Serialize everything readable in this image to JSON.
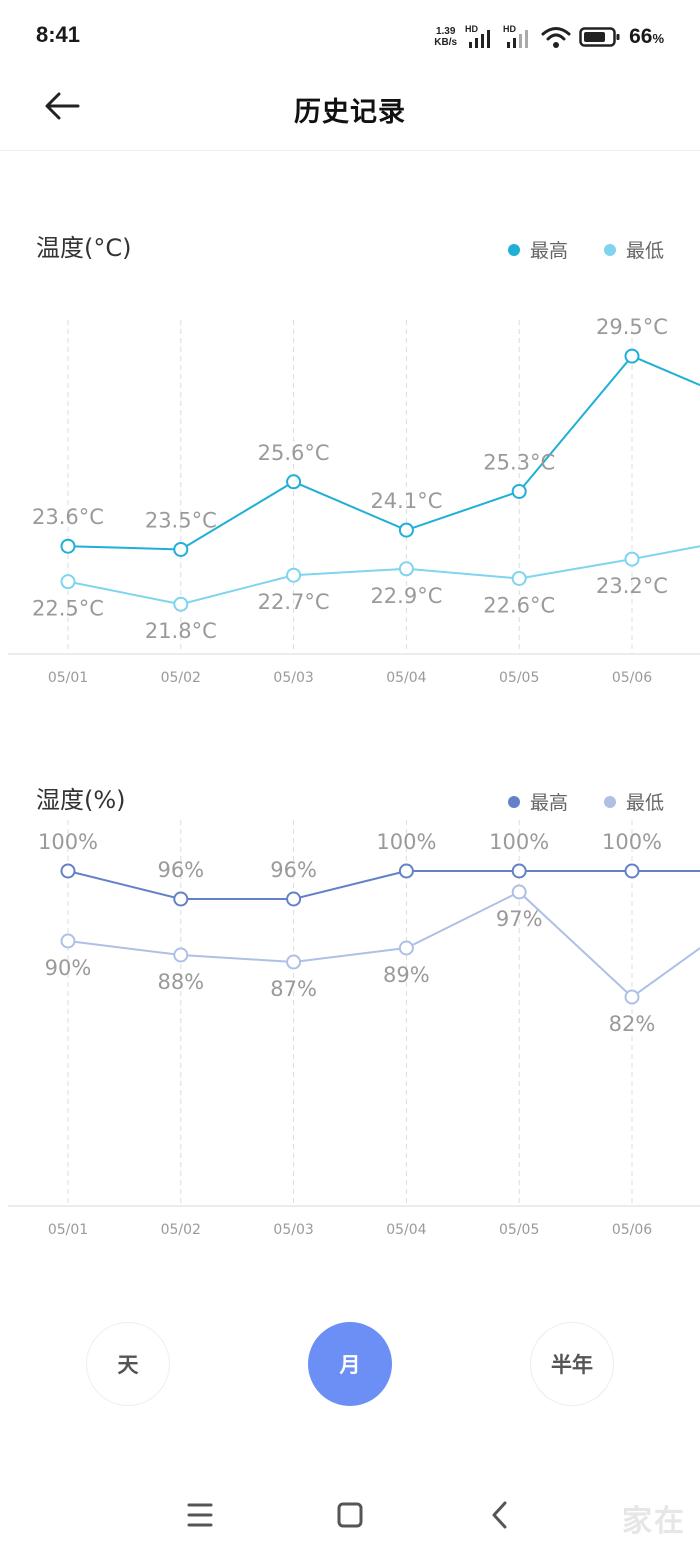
{
  "status_bar": {
    "time": "8:41",
    "net_speed_value": "1.39",
    "net_speed_unit": "KB/s",
    "signal_badge_1": "HD",
    "signal_badge_2": "HD",
    "battery_percent": "66",
    "battery_unit": "%"
  },
  "header": {
    "title": "历史记录"
  },
  "temperature_chart": {
    "title": "温度(°C)",
    "legend": [
      {
        "label": "最高",
        "color": "#1eb0d6"
      },
      {
        "label": "最低",
        "color": "#7fd4ef"
      }
    ],
    "labels": {
      "high": [
        "23.6°C",
        "23.5°C",
        "25.6°C",
        "24.1°C",
        "25.3°C",
        "29.5°C"
      ],
      "low": [
        "22.5°C",
        "21.8°C",
        "22.7°C",
        "22.9°C",
        "22.6°C",
        "23.2°C"
      ]
    }
  },
  "humidity_chart": {
    "title": "湿度(%)",
    "legend": [
      {
        "label": "最高",
        "color": "#6281c8"
      },
      {
        "label": "最低",
        "color": "#aec0e6"
      }
    ],
    "labels": {
      "high": [
        "100%",
        "96%",
        "96%",
        "100%",
        "100%",
        "100%"
      ],
      "low": [
        "90%",
        "88%",
        "87%",
        "89%",
        "97%",
        "82%"
      ]
    }
  },
  "chart_data": [
    {
      "type": "line",
      "title": "温度(°C)",
      "categories": [
        "05/01",
        "05/02",
        "05/03",
        "05/04",
        "05/05",
        "05/06"
      ],
      "series": [
        {
          "name": "最高",
          "values": [
            23.6,
            23.5,
            25.6,
            24.1,
            25.3,
            29.5
          ],
          "color": "#1eb0d6"
        },
        {
          "name": "最低",
          "values": [
            22.5,
            21.8,
            22.7,
            22.9,
            22.6,
            23.2
          ],
          "color": "#7fd4ef"
        }
      ],
      "ylim": [
        21,
        30
      ],
      "grid": "vertical-dashed",
      "legend_position": "top-right"
    },
    {
      "type": "line",
      "title": "湿度(%)",
      "categories": [
        "05/01",
        "05/02",
        "05/03",
        "05/04",
        "05/05",
        "05/06"
      ],
      "series": [
        {
          "name": "最高",
          "values": [
            100,
            96,
            96,
            100,
            100,
            100
          ],
          "color": "#6281c8"
        },
        {
          "name": "最低",
          "values": [
            90,
            88,
            87,
            89,
            97,
            82
          ],
          "color": "#aec0e6"
        }
      ],
      "ylim": [
        60,
        100
      ],
      "grid": "vertical-dashed",
      "legend_position": "top-right"
    }
  ],
  "period_tabs": [
    {
      "label": "天",
      "active": false
    },
    {
      "label": "月",
      "active": true
    },
    {
      "label": "半年",
      "active": false
    }
  ],
  "watermark": "家在"
}
